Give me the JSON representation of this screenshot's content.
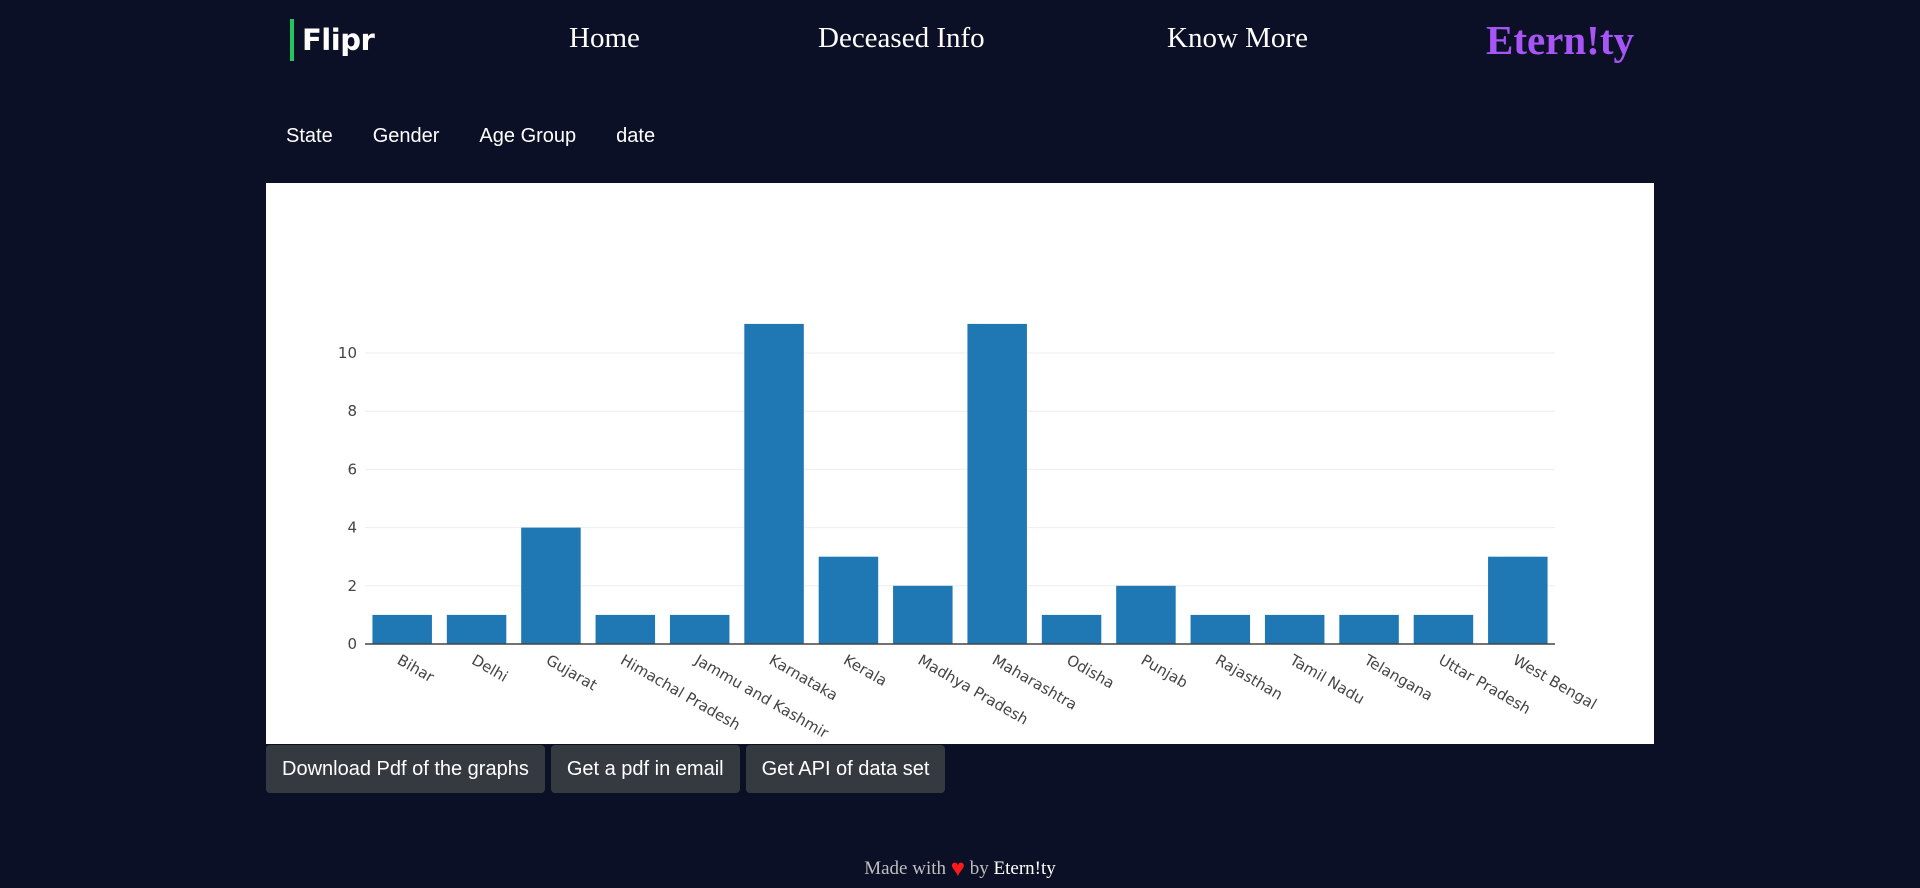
{
  "navbar": {
    "logo_text": "Flipr",
    "links": [
      "Home",
      "Deceased Info",
      "Know More"
    ],
    "brand": "Etern!ty"
  },
  "filters": {
    "tabs": [
      "State",
      "Gender",
      "Age Group",
      "date"
    ]
  },
  "chart_data": {
    "type": "bar",
    "title": "",
    "xlabel": "",
    "ylabel": "",
    "categories": [
      "Bihar",
      "Delhi",
      "Gujarat",
      "Himachal Pradesh",
      "Jammu and Kashmir",
      "Karnataka",
      "Kerala",
      "Madhya Pradesh",
      "Maharashtra",
      "Odisha",
      "Punjab",
      "Rajasthan",
      "Tamil Nadu",
      "Telangana",
      "Uttar Pradesh",
      "West Bengal"
    ],
    "values": [
      1,
      1,
      4,
      1,
      1,
      11,
      3,
      2,
      11,
      1,
      2,
      1,
      1,
      1,
      1,
      3
    ],
    "ylim": [
      0,
      11
    ],
    "yticks": [
      0,
      2,
      4,
      6,
      8,
      10
    ],
    "grid": true,
    "bar_color": "#1f77b4"
  },
  "actions": {
    "download_pdf": "Download Pdf of the graphs",
    "email_pdf": "Get a pdf in email",
    "get_api": "Get API of data set"
  },
  "footer": {
    "made_with": "Made with",
    "by": "by",
    "author": "Etern!ty",
    "heart_icon": "heart-icon"
  }
}
